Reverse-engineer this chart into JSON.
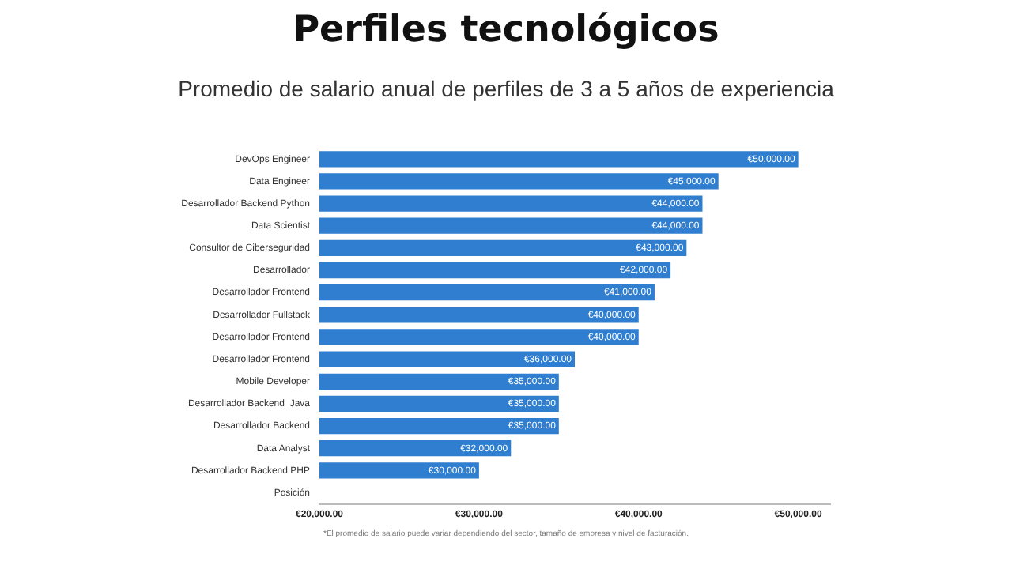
{
  "chart_data": {
    "type": "bar",
    "orientation": "horizontal",
    "title": "Perfiles tecnológicos",
    "subtitle": "Promedio de salario anual de perfiles de 3 a 5 años de experiencia",
    "categories": [
      "DevOps Engineer",
      "Data Engineer",
      "Desarrollador Backend Python",
      "Data Scientist",
      "Consultor de Ciberseguridad",
      "Desarrollador",
      "Desarrollador Frontend",
      "Desarrollador Fullstack",
      "Desarrollador Frontend",
      "Desarrollador Frontend",
      "Mobile Developer",
      "Desarrollador Backend  Java",
      "Desarrollador Backend",
      "Data Analyst",
      "Desarrollador Backend PHP",
      "Posición"
    ],
    "values": [
      50000,
      45000,
      44000,
      44000,
      43000,
      42000,
      41000,
      40000,
      40000,
      36000,
      35000,
      35000,
      35000,
      32000,
      30000,
      null
    ],
    "value_labels": [
      "€50,000.00",
      "€45,000.00",
      "€44,000.00",
      "€44,000.00",
      "€43,000.00",
      "€42,000.00",
      "€41,000.00",
      "€40,000.00",
      "€40,000.00",
      "€36,000.00",
      "€35,000.00",
      "€35,000.00",
      "€35,000.00",
      "€32,000.00",
      "€30,000.00",
      null
    ],
    "color": "#2f7ecf",
    "xlim": [
      20000,
      52000
    ],
    "xticks": [
      {
        "value": 20000,
        "label": "€20,000.00"
      },
      {
        "value": 30000,
        "label": "€30,000.00"
      },
      {
        "value": 40000,
        "label": "€40,000.00"
      },
      {
        "value": 50000,
        "label": "€50,000.00"
      }
    ],
    "grid": false,
    "legend": false,
    "annotations": [
      "*El promedio de salario puede variar dependiendo del sector, tamaño de empresa y nivel de facturación."
    ]
  }
}
